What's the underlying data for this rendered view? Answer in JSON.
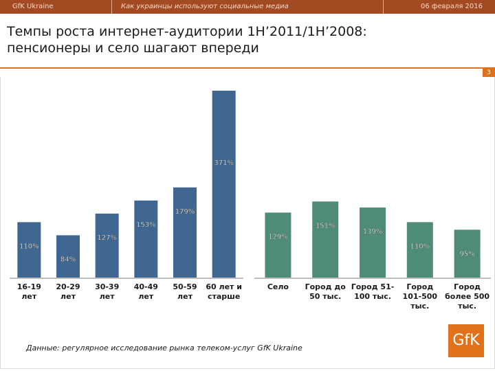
{
  "header": {
    "company": "GfK Ukraine",
    "subtitle": "Как украинцы используют социальные медиа",
    "date": "06 февраля 2016"
  },
  "title_line1": "Темпы роста интернет-аудитории 1H’2011/1H’2008:",
  "title_line2": "пенсионеры и село шагают впереди",
  "page_number": "3",
  "footnote": "Данные: регулярное исследование рынка телеком-услуг GfK Ukraine",
  "logo_text": "GfK",
  "colors": {
    "age_bars": "#3f6791",
    "settlement_bars": "#4f8c78",
    "brand": "#e1711a",
    "header": "#a34a23"
  },
  "chart_data": [
    {
      "type": "bar",
      "title": "",
      "series_name": "Age",
      "categories": [
        "16-19 лет",
        "20-29 лет",
        "30-39 лет",
        "40-49 лет",
        "50-59 лет",
        "60 лет и старше"
      ],
      "category_lines": [
        [
          "16-19",
          "лет"
        ],
        [
          "20-29",
          "лет"
        ],
        [
          "30-39",
          "лет"
        ],
        [
          "40-49",
          "лет"
        ],
        [
          "50-59",
          "лет"
        ],
        [
          "60 лет и",
          "старше"
        ]
      ],
      "values": [
        110,
        84,
        127,
        153,
        179,
        371
      ],
      "labels": [
        "110%",
        "84%",
        "127%",
        "153%",
        "179%",
        "371%"
      ],
      "ylim": [
        0,
        400
      ]
    },
    {
      "type": "bar",
      "title": "",
      "series_name": "Settlement",
      "categories": [
        "Село",
        "Город до 50 тыс.",
        "Город 51-100 тыс.",
        "Город 101-500 тыс.",
        "Город более 500 тыс."
      ],
      "category_lines": [
        [
          "Село"
        ],
        [
          "Город до",
          "50 тыс."
        ],
        [
          "Город 51-",
          "100 тыс."
        ],
        [
          "Город",
          "101-500",
          "тыс."
        ],
        [
          "Город",
          "более 500",
          "тыс."
        ]
      ],
      "values": [
        129,
        151,
        139,
        110,
        95
      ],
      "labels": [
        "129%",
        "151%",
        "139%",
        "110%",
        "95%"
      ],
      "ylim": [
        0,
        400
      ]
    }
  ]
}
